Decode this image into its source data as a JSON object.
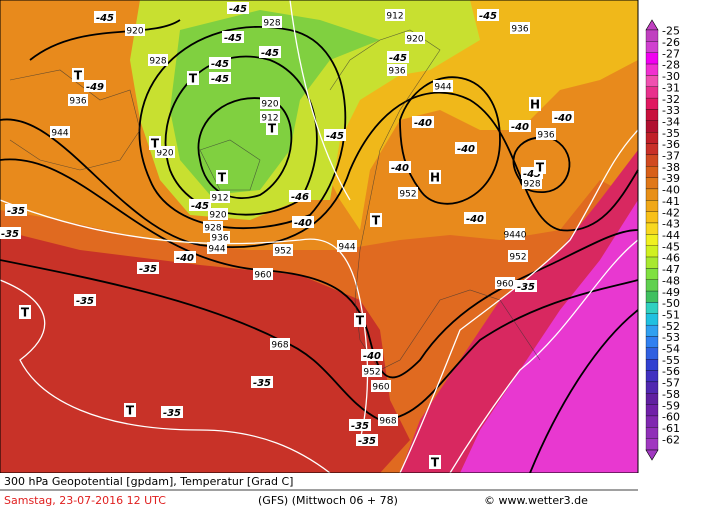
{
  "map": {
    "labels": [
      "-45",
      "920",
      "-45",
      "928",
      "912",
      "-45",
      "936",
      "-45",
      "-45",
      "-45",
      "-45",
      "928",
      "920",
      "-45",
      "936",
      "944",
      "-49",
      "936",
      "912",
      "920",
      "-45",
      "944",
      "920",
      "-40",
      "-40",
      "-40",
      "-40",
      "936",
      "-40",
      "928",
      "952",
      "-45",
      "912",
      "-45",
      "920",
      "936",
      "928",
      "944",
      "-46",
      "-40",
      "-40",
      "952",
      "944",
      "-40",
      "9440",
      "952",
      "960",
      "-35",
      "960",
      "-35",
      "-35",
      "-35",
      "-35",
      "968",
      "-40",
      "952",
      "960",
      "-35",
      "-35",
      "968",
      "-35",
      "-35"
    ],
    "markers": [
      "T",
      "T",
      "T",
      "T",
      "T",
      "H",
      "H",
      "T",
      "T",
      "T",
      "T",
      "T",
      "T"
    ]
  },
  "colorbar": {
    "labels": [
      -25,
      -26,
      -27,
      -28,
      -30,
      -31,
      -32,
      -33,
      -34,
      -35,
      -36,
      -37,
      -38,
      -39,
      -40,
      -41,
      -42,
      -43,
      -44,
      -45,
      -46,
      -47,
      -48,
      -49,
      -50,
      -51,
      -52,
      -53,
      -54,
      -55,
      -56,
      -57,
      -58,
      -59,
      -60,
      -61,
      -62
    ],
    "colors": [
      "#c040c0",
      "#d040d0",
      "#f000f0",
      "#f030d0",
      "#f050b0",
      "#e8308c",
      "#e01860",
      "#c8103c",
      "#b01030",
      "#c02028",
      "#c83028",
      "#d04a20",
      "#d86018",
      "#e07818",
      "#e89018",
      "#f0a818",
      "#f8c018",
      "#f8d820",
      "#f0f020",
      "#d0f020",
      "#a8e830",
      "#80e040",
      "#60d050",
      "#40c060",
      "#30d0c0",
      "#20c0e0",
      "#30a0f0",
      "#3080f0",
      "#3060e0",
      "#3040d0",
      "#4030c0",
      "#5028b0",
      "#6020a0",
      "#7020a8",
      "#8028b0",
      "#9030b8",
      "#a038c0"
    ]
  },
  "footer": {
    "line1": "300 hPa Geopotential [gpdam], Temperatur [Grad C]",
    "date": "Samstag, 23-07-2016  12 UTC",
    "model": "(GFS)  (Mittwoch 06 + 78)",
    "credit": "© www.wetter3.de"
  }
}
